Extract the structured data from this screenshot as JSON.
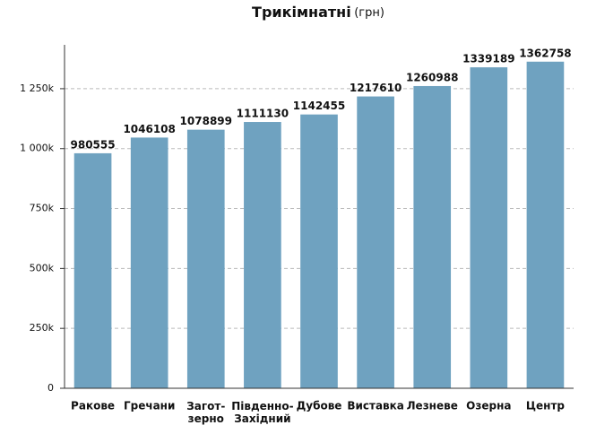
{
  "chart_data": {
    "type": "bar",
    "title": "Трикімнатні",
    "title_unit": "(грн)",
    "categories": [
      "Ракове",
      "Гречани",
      "Загот-\nзерно",
      "Південно-\nЗахідний",
      "Дубове",
      "Виставка",
      "Лезневе",
      "Озерна",
      "Центр"
    ],
    "values": [
      980555,
      1046108,
      1078899,
      1111130,
      1142455,
      1217610,
      1260988,
      1339189,
      1362758
    ],
    "color": "#6fa2c0",
    "ylim": [
      0,
      1433000
    ],
    "yticks": [
      0,
      {
        "value": 250000,
        "label": "250k"
      },
      {
        "value": 500000,
        "label": "500k"
      },
      {
        "value": 750000,
        "label": "750k"
      },
      {
        "value": 1000000,
        "label": "1 000k"
      },
      {
        "value": 1250000,
        "label": "1 250k"
      }
    ],
    "grid": true
  }
}
